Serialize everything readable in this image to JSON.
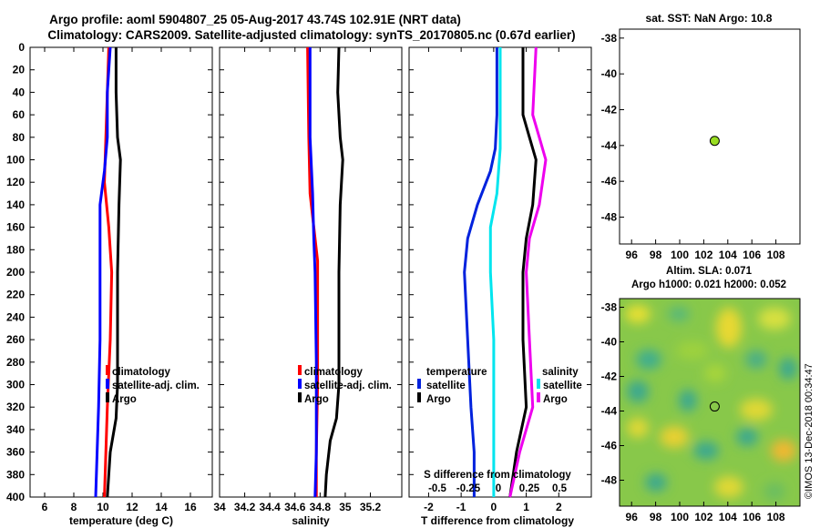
{
  "title": {
    "line1": "Argo profile: aoml 5904807_25 05-Aug-2017 43.74S 102.91E (NRT data)",
    "line2": "Climatology: CARS2009. Satellite-adjusted climatology: synTS_20170805.nc (0.67d earlier)"
  },
  "colors": {
    "climatology": "#ff0000",
    "satellite": "#0000ff",
    "argo": "#000000",
    "sat_t": "#0022dd",
    "sat_s": "#00e5ee",
    "argo_s": "#ee00ee",
    "dot": "#99dd22"
  },
  "depth_axis": {
    "ticks": [
      0,
      20,
      40,
      60,
      80,
      100,
      120,
      140,
      160,
      180,
      200,
      220,
      240,
      260,
      280,
      300,
      320,
      340,
      360,
      380,
      400
    ]
  },
  "chart_data": [
    {
      "type": "line",
      "name": "temperature",
      "xlabel": "temperature (deg C)",
      "ylabel": "depth",
      "xlim": [
        5,
        17.5
      ],
      "ylim": [
        400,
        0
      ],
      "xticks": [
        6,
        8,
        10,
        12,
        14,
        16
      ],
      "legend": [
        "climatology",
        "satellite-adj. clim.",
        "Argo"
      ],
      "series": [
        {
          "name": "climatology",
          "color": "#ff0000",
          "points": [
            [
              10.4,
              0
            ],
            [
              10.3,
              40
            ],
            [
              10.2,
              80
            ],
            [
              10.1,
              120
            ],
            [
              10.4,
              160
            ],
            [
              10.6,
              200
            ],
            [
              10.5,
              260
            ],
            [
              10.3,
              320
            ],
            [
              10.2,
              360
            ],
            [
              10.1,
              400
            ]
          ]
        },
        {
          "name": "satellite-adj. clim.",
          "color": "#0000ff",
          "points": [
            [
              10.5,
              0
            ],
            [
              10.3,
              40
            ],
            [
              10.3,
              80
            ],
            [
              10.1,
              110
            ],
            [
              9.8,
              140
            ],
            [
              9.8,
              200
            ],
            [
              9.8,
              260
            ],
            [
              9.7,
              320
            ],
            [
              9.6,
              360
            ],
            [
              9.5,
              400
            ]
          ]
        },
        {
          "name": "Argo",
          "color": "#000000",
          "points": [
            [
              10.9,
              0
            ],
            [
              10.9,
              40
            ],
            [
              11.0,
              80
            ],
            [
              11.2,
              100
            ],
            [
              11.1,
              140
            ],
            [
              11.0,
              200
            ],
            [
              11.0,
              300
            ],
            [
              10.9,
              330
            ],
            [
              10.5,
              360
            ],
            [
              10.3,
              400
            ]
          ]
        }
      ]
    },
    {
      "type": "line",
      "name": "salinity",
      "xlabel": "salinity",
      "ylabel": "depth",
      "xlim": [
        34,
        35.45
      ],
      "xticks": [
        34,
        34.2,
        34.4,
        34.6,
        34.8,
        35,
        35.2
      ],
      "xticklabels": [
        "34",
        "34.2",
        "34.4",
        "34.6",
        "34.8",
        "35",
        "35.2"
      ],
      "legend": [
        "climatology",
        "satellite-adj. clim.",
        "Argo"
      ],
      "series": [
        {
          "name": "climatology",
          "color": "#ff0000",
          "points": [
            [
              34.7,
              0
            ],
            [
              34.71,
              80
            ],
            [
              34.72,
              130
            ],
            [
              34.76,
              170
            ],
            [
              34.78,
              190
            ],
            [
              34.78,
              300
            ],
            [
              34.77,
              360
            ],
            [
              34.77,
              400
            ]
          ]
        },
        {
          "name": "satellite-adj. clim.",
          "color": "#0000ff",
          "points": [
            [
              34.72,
              0
            ],
            [
              34.72,
              80
            ],
            [
              34.74,
              130
            ],
            [
              34.75,
              170
            ],
            [
              34.76,
              200
            ],
            [
              34.77,
              280
            ],
            [
              34.77,
              360
            ],
            [
              34.76,
              400
            ]
          ]
        },
        {
          "name": "Argo",
          "color": "#000000",
          "points": [
            [
              34.95,
              0
            ],
            [
              34.94,
              40
            ],
            [
              34.96,
              80
            ],
            [
              34.98,
              100
            ],
            [
              34.96,
              140
            ],
            [
              34.95,
              200
            ],
            [
              34.95,
              300
            ],
            [
              34.93,
              330
            ],
            [
              34.88,
              350
            ],
            [
              34.85,
              380
            ],
            [
              34.84,
              400
            ]
          ]
        }
      ]
    },
    {
      "type": "line",
      "name": "difference",
      "xlabel": "T difference from climatology",
      "ylabel": "depth",
      "xlim": [
        -2.6,
        3
      ],
      "xticks": [
        -2,
        -1,
        0,
        1,
        2
      ],
      "top_label": "S difference from climatology",
      "top_ticks": [
        "-0.5",
        "-0.25",
        "0",
        "0.25",
        "0.5"
      ],
      "legend_left_title": "temperature",
      "legend_right_title": "salinity",
      "legend_left": [
        "satellite",
        "Argo"
      ],
      "legend_right": [
        "satellite",
        "Argo"
      ],
      "series": [
        {
          "name": "satellite T",
          "color": "#0022dd",
          "points": [
            [
              0.1,
              0
            ],
            [
              0.1,
              60
            ],
            [
              0.05,
              90
            ],
            [
              -0.1,
              110
            ],
            [
              -0.5,
              140
            ],
            [
              -0.8,
              170
            ],
            [
              -0.9,
              200
            ],
            [
              -0.8,
              260
            ],
            [
              -0.7,
              320
            ],
            [
              -0.6,
              360
            ],
            [
              -0.6,
              400
            ]
          ]
        },
        {
          "name": "satellite S",
          "color": "#00e5ee",
          "points": [
            [
              0.2,
              0
            ],
            [
              0.2,
              60
            ],
            [
              0.2,
              90
            ],
            [
              0.1,
              130
            ],
            [
              -0.1,
              160
            ],
            [
              -0.1,
              200
            ],
            [
              0.0,
              260
            ],
            [
              0.0,
              320
            ],
            [
              0.0,
              360
            ],
            [
              0.0,
              400
            ]
          ]
        },
        {
          "name": "Argo T",
          "color": "#000000",
          "points": [
            [
              0.9,
              0
            ],
            [
              0.9,
              60
            ],
            [
              1.1,
              80
            ],
            [
              1.3,
              100
            ],
            [
              1.2,
              140
            ],
            [
              1.0,
              170
            ],
            [
              0.9,
              200
            ],
            [
              0.9,
              260
            ],
            [
              1.0,
              320
            ],
            [
              0.7,
              360
            ],
            [
              0.5,
              400
            ]
          ]
        },
        {
          "name": "Argo S",
          "color": "#ee00ee",
          "points": [
            [
              1.3,
              0
            ],
            [
              1.2,
              60
            ],
            [
              1.4,
              80
            ],
            [
              1.6,
              100
            ],
            [
              1.4,
              140
            ],
            [
              1.1,
              170
            ],
            [
              1.0,
              200
            ],
            [
              1.1,
              260
            ],
            [
              1.2,
              320
            ],
            [
              0.8,
              360
            ],
            [
              0.5,
              400
            ]
          ]
        }
      ]
    }
  ],
  "sst_panel": {
    "title": "sat. SST: NaN Argo: 10.8",
    "xticks": [
      96,
      98,
      100,
      102,
      104,
      106,
      108
    ],
    "yticks": [
      -38,
      -40,
      -42,
      -44,
      -46,
      -48
    ],
    "argo_position": [
      102.91,
      -43.74
    ]
  },
  "ssh_panel": {
    "title1": "Altim. SLA: 0.071",
    "title2": "Argo h1000: 0.021 h2000: 0.052",
    "xticks": [
      96,
      98,
      100,
      102,
      104,
      106,
      108
    ],
    "yticks": [
      -38,
      -40,
      -42,
      -44,
      -46,
      -48
    ],
    "argo_position": [
      102.91,
      -43.74
    ]
  },
  "watermark": "©IMOS 13-Dec-2018 00:34:47"
}
